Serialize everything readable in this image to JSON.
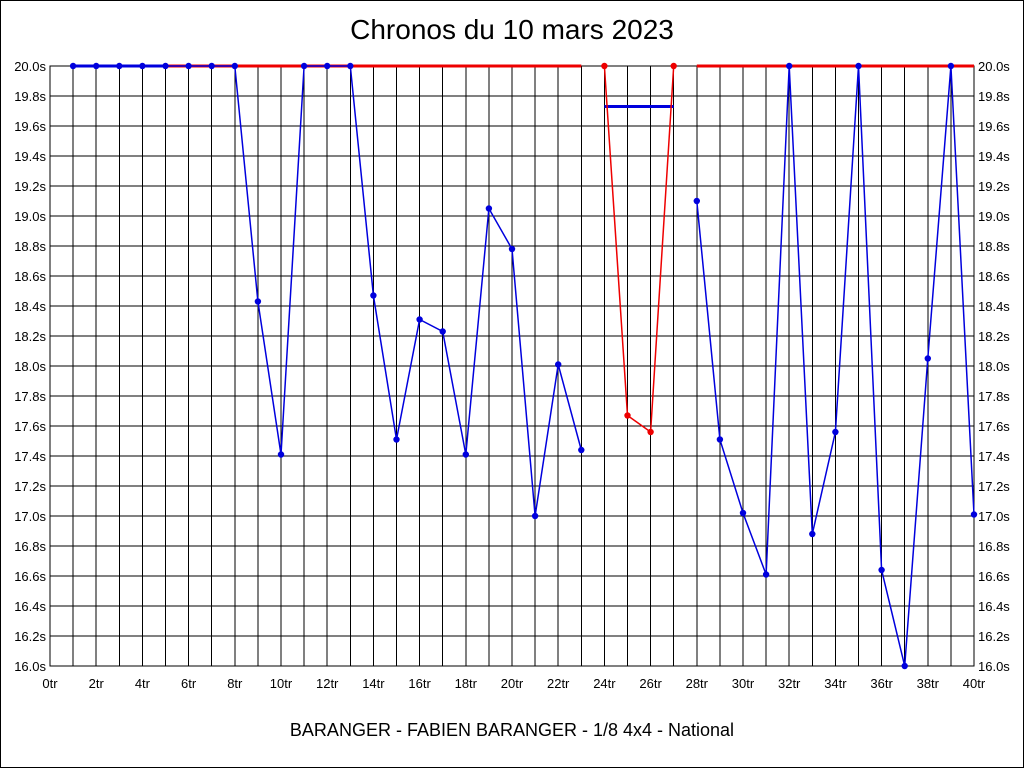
{
  "chart_data": {
    "type": "line",
    "title": "Chronos du 10 mars 2023",
    "footer": "BARANGER - FABIEN BARANGER - 1/8 4x4 - National",
    "xlabel": "",
    "ylabel": "",
    "xlim": [
      0,
      40
    ],
    "ylim": [
      16.0,
      20.0
    ],
    "grid": true,
    "x_ticks": [
      "0tr",
      "2tr",
      "4tr",
      "6tr",
      "8tr",
      "10tr",
      "12tr",
      "14tr",
      "16tr",
      "18tr",
      "20tr",
      "22tr",
      "24tr",
      "26tr",
      "28tr",
      "30tr",
      "32tr",
      "34tr",
      "36tr",
      "38tr",
      "40tr"
    ],
    "y_ticks": [
      "16.0s",
      "16.2s",
      "16.4s",
      "16.6s",
      "16.8s",
      "17.0s",
      "17.2s",
      "17.4s",
      "17.6s",
      "17.8s",
      "18.0s",
      "18.2s",
      "18.4s",
      "18.6s",
      "18.8s",
      "19.0s",
      "19.2s",
      "19.4s",
      "19.6s",
      "19.8s",
      "20.0s"
    ],
    "series": [
      {
        "color": "#0000dd",
        "segments": [
          [
            [
              1,
              20.0
            ],
            [
              2,
              20.0
            ],
            [
              3,
              20.0
            ],
            [
              4,
              20.0
            ],
            [
              5,
              20.0
            ],
            [
              6,
              20.0
            ],
            [
              7,
              20.0
            ],
            [
              8,
              20.0
            ],
            [
              9,
              18.43
            ],
            [
              10,
              17.41
            ],
            [
              11,
              20.0
            ],
            [
              12,
              20.0
            ],
            [
              13,
              20.0
            ],
            [
              14,
              18.47
            ],
            [
              15,
              17.51
            ],
            [
              16,
              18.31
            ],
            [
              17,
              18.23
            ],
            [
              18,
              17.41
            ],
            [
              19,
              19.05
            ],
            [
              20,
              18.78
            ],
            [
              21,
              17.0
            ],
            [
              22,
              18.01
            ],
            [
              23,
              17.44
            ]
          ],
          [
            [
              28,
              19.1
            ],
            [
              29,
              17.51
            ],
            [
              30,
              17.02
            ],
            [
              31,
              16.61
            ],
            [
              32,
              20.0
            ],
            [
              33,
              16.88
            ],
            [
              34,
              17.56
            ],
            [
              35,
              20.0
            ],
            [
              36,
              16.64
            ],
            [
              37,
              16.0
            ],
            [
              38,
              18.05
            ],
            [
              39,
              20.0
            ],
            [
              40,
              17.01
            ]
          ]
        ]
      },
      {
        "color": "#ee0000",
        "segments": [
          [
            [
              24,
              20.0
            ],
            [
              25,
              17.67
            ],
            [
              26,
              17.56
            ],
            [
              27,
              20.0
            ]
          ]
        ]
      }
    ],
    "reference_lines": [
      {
        "color": "#ee0000",
        "x0": 1,
        "x1": 23,
        "y": 20.0
      },
      {
        "color": "#ee0000",
        "x0": 28,
        "x1": 40,
        "y": 20.0
      },
      {
        "color": "#0000dd",
        "x0": 1,
        "x1": 5,
        "y": 20.0
      },
      {
        "color": "#0000dd",
        "x0": 24,
        "x1": 27,
        "y": 19.73
      }
    ]
  }
}
